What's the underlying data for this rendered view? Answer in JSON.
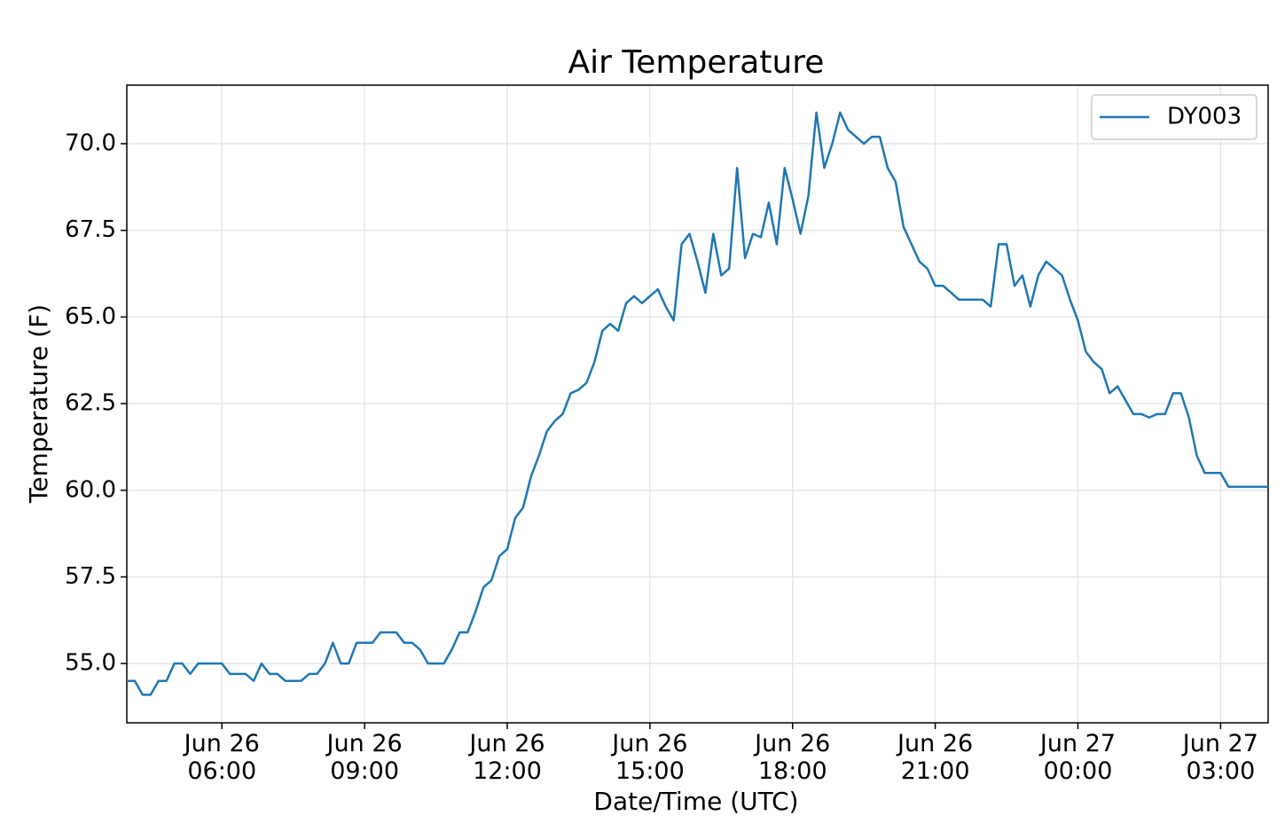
{
  "chart_data": {
    "type": "line",
    "title": "Air Temperature",
    "x_label": "Date/Time (UTC)",
    "y_label": "Temperature (F)",
    "x": [
      "Jun 26 04:00",
      "Jun 26 04:10",
      "Jun 26 04:20",
      "Jun 26 04:30",
      "Jun 26 04:40",
      "Jun 26 04:50",
      "Jun 26 05:00",
      "Jun 26 05:10",
      "Jun 26 05:20",
      "Jun 26 05:30",
      "Jun 26 05:40",
      "Jun 26 05:50",
      "Jun 26 06:00",
      "Jun 26 06:10",
      "Jun 26 06:20",
      "Jun 26 06:30",
      "Jun 26 06:40",
      "Jun 26 06:50",
      "Jun 26 07:00",
      "Jun 26 07:10",
      "Jun 26 07:20",
      "Jun 26 07:30",
      "Jun 26 07:40",
      "Jun 26 07:50",
      "Jun 26 08:00",
      "Jun 26 08:10",
      "Jun 26 08:20",
      "Jun 26 08:30",
      "Jun 26 08:40",
      "Jun 26 08:50",
      "Jun 26 09:00",
      "Jun 26 09:10",
      "Jun 26 09:20",
      "Jun 26 09:30",
      "Jun 26 09:40",
      "Jun 26 09:50",
      "Jun 26 10:00",
      "Jun 26 10:10",
      "Jun 26 10:20",
      "Jun 26 10:30",
      "Jun 26 10:40",
      "Jun 26 10:50",
      "Jun 26 11:00",
      "Jun 26 11:10",
      "Jun 26 11:20",
      "Jun 26 11:30",
      "Jun 26 11:40",
      "Jun 26 11:50",
      "Jun 26 12:00",
      "Jun 26 12:10",
      "Jun 26 12:20",
      "Jun 26 12:30",
      "Jun 26 12:40",
      "Jun 26 12:50",
      "Jun 26 13:00",
      "Jun 26 13:10",
      "Jun 26 13:20",
      "Jun 26 13:30",
      "Jun 26 13:40",
      "Jun 26 13:50",
      "Jun 26 14:00",
      "Jun 26 14:10",
      "Jun 26 14:20",
      "Jun 26 14:30",
      "Jun 26 14:40",
      "Jun 26 14:50",
      "Jun 26 15:00",
      "Jun 26 15:10",
      "Jun 26 15:20",
      "Jun 26 15:30",
      "Jun 26 15:40",
      "Jun 26 15:50",
      "Jun 26 16:00",
      "Jun 26 16:10",
      "Jun 26 16:20",
      "Jun 26 16:30",
      "Jun 26 16:40",
      "Jun 26 16:50",
      "Jun 26 17:00",
      "Jun 26 17:10",
      "Jun 26 17:20",
      "Jun 26 17:30",
      "Jun 26 17:40",
      "Jun 26 17:50",
      "Jun 26 18:00",
      "Jun 26 18:10",
      "Jun 26 18:20",
      "Jun 26 18:30",
      "Jun 26 18:40",
      "Jun 26 18:50",
      "Jun 26 19:00",
      "Jun 26 19:10",
      "Jun 26 19:20",
      "Jun 26 19:30",
      "Jun 26 19:40",
      "Jun 26 19:50",
      "Jun 26 20:00",
      "Jun 26 20:10",
      "Jun 26 20:20",
      "Jun 26 20:30",
      "Jun 26 20:40",
      "Jun 26 20:50",
      "Jun 26 21:00",
      "Jun 26 21:10",
      "Jun 26 21:20",
      "Jun 26 21:30",
      "Jun 26 21:40",
      "Jun 26 21:50",
      "Jun 26 22:00",
      "Jun 26 22:10",
      "Jun 26 22:20",
      "Jun 26 22:30",
      "Jun 26 22:40",
      "Jun 26 22:50",
      "Jun 26 23:00",
      "Jun 26 23:10",
      "Jun 26 23:20",
      "Jun 26 23:30",
      "Jun 26 23:40",
      "Jun 26 23:50",
      "Jun 27 00:00",
      "Jun 27 00:10",
      "Jun 27 00:20",
      "Jun 27 00:30",
      "Jun 27 00:40",
      "Jun 27 00:50",
      "Jun 27 01:00",
      "Jun 27 01:10",
      "Jun 27 01:20",
      "Jun 27 01:30",
      "Jun 27 01:40",
      "Jun 27 01:50",
      "Jun 27 02:00",
      "Jun 27 02:10",
      "Jun 27 02:20",
      "Jun 27 02:30",
      "Jun 27 02:40",
      "Jun 27 02:50",
      "Jun 27 03:00",
      "Jun 27 03:10",
      "Jun 27 03:20",
      "Jun 27 03:30",
      "Jun 27 03:40",
      "Jun 27 03:50",
      "Jun 27 04:00"
    ],
    "series": [
      {
        "name": "DY003",
        "color": "#1f77b4",
        "values": [
          54.5,
          54.5,
          54.1,
          54.1,
          54.5,
          54.5,
          55.0,
          55.0,
          54.7,
          55.0,
          55.0,
          55.0,
          55.0,
          54.7,
          54.7,
          54.7,
          54.5,
          55.0,
          54.7,
          54.7,
          54.5,
          54.5,
          54.5,
          54.7,
          54.7,
          55.0,
          55.6,
          55.0,
          55.0,
          55.6,
          55.6,
          55.6,
          55.9,
          55.9,
          55.9,
          55.6,
          55.6,
          55.4,
          55.0,
          55.0,
          55.0,
          55.4,
          55.9,
          55.9,
          56.5,
          57.2,
          57.4,
          58.1,
          58.3,
          59.2,
          59.5,
          60.4,
          61.0,
          61.7,
          62.0,
          62.2,
          62.8,
          62.9,
          63.1,
          63.7,
          64.6,
          64.8,
          64.6,
          65.4,
          65.6,
          65.4,
          65.6,
          65.8,
          65.3,
          64.9,
          67.1,
          67.4,
          66.6,
          65.7,
          67.4,
          66.2,
          66.4,
          69.3,
          66.7,
          67.4,
          67.3,
          68.3,
          67.1,
          69.3,
          68.4,
          67.4,
          68.5,
          70.9,
          69.3,
          70.0,
          70.9,
          70.4,
          70.2,
          70.0,
          70.2,
          70.2,
          69.3,
          68.9,
          67.6,
          67.1,
          66.6,
          66.4,
          65.9,
          65.9,
          65.7,
          65.5,
          65.5,
          65.5,
          65.5,
          65.3,
          67.1,
          67.1,
          65.9,
          66.2,
          65.3,
          66.2,
          66.6,
          66.4,
          66.2,
          65.5,
          64.9,
          64.0,
          63.7,
          63.5,
          62.8,
          63.0,
          62.6,
          62.2,
          62.2,
          62.1,
          62.2,
          62.2,
          62.8,
          62.8,
          62.1,
          61.0,
          60.5,
          60.5,
          60.5,
          60.1,
          60.1,
          60.1,
          60.1,
          60.1,
          60.1
        ]
      }
    ],
    "xlim": [
      "Jun 26 04:00",
      "Jun 27 04:00"
    ],
    "xticks": [
      "Jun 26 06:00",
      "Jun 26 09:00",
      "Jun 26 12:00",
      "Jun 26 15:00",
      "Jun 26 18:00",
      "Jun 26 21:00",
      "Jun 27 00:00",
      "Jun 27 03:00"
    ],
    "ylim": [
      53.29,
      71.69
    ],
    "yticks": [
      {
        "value": 55,
        "label": "55.0"
      },
      57.5,
      {
        "value": 60,
        "label": "60.0"
      },
      62.5,
      {
        "value": 65,
        "label": "65.0"
      },
      67.5,
      {
        "value": 70,
        "label": "70.0"
      }
    ],
    "grid": true,
    "legend": "upper right"
  }
}
